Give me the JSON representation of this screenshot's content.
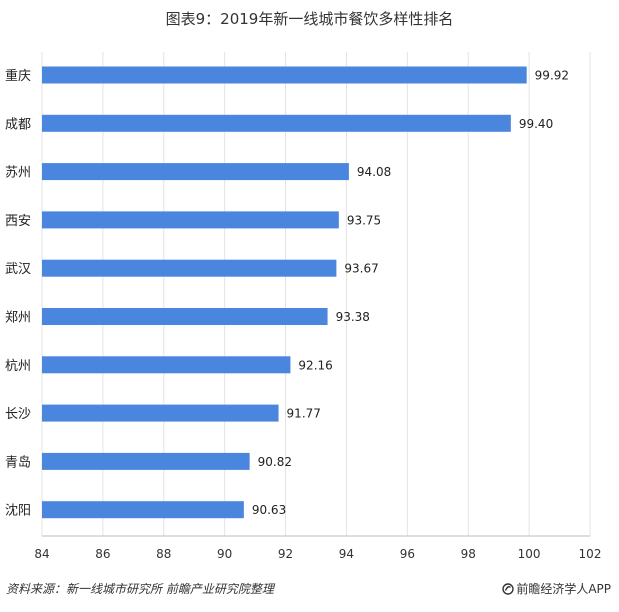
{
  "chart_data": {
    "type": "bar",
    "orientation": "horizontal",
    "title": "图表9：2019年新一线城市餐饮多样性排名",
    "categories": [
      "重庆",
      "成都",
      "苏州",
      "西安",
      "武汉",
      "郑州",
      "杭州",
      "长沙",
      "青岛",
      "沈阳"
    ],
    "values": [
      99.92,
      99.4,
      94.08,
      93.75,
      93.67,
      93.38,
      92.16,
      91.77,
      90.82,
      90.63
    ],
    "value_labels": [
      "99.92",
      "99.40",
      "94.08",
      "93.75",
      "93.67",
      "93.38",
      "92.16",
      "91.77",
      "90.82",
      "90.63"
    ],
    "xlim": [
      84,
      102
    ],
    "xticks": [
      "84",
      "86",
      "88",
      "90",
      "92",
      "94",
      "96",
      "98",
      "100",
      "102"
    ],
    "grid": true,
    "legend": "none",
    "bar_color": "#4a86de"
  },
  "footer": {
    "source": "资料来源：新一线城市研究所 前瞻产业研究院整理",
    "brand": "前瞻经济学人APP",
    "brand_icon": "qianzhan-logo-icon"
  }
}
